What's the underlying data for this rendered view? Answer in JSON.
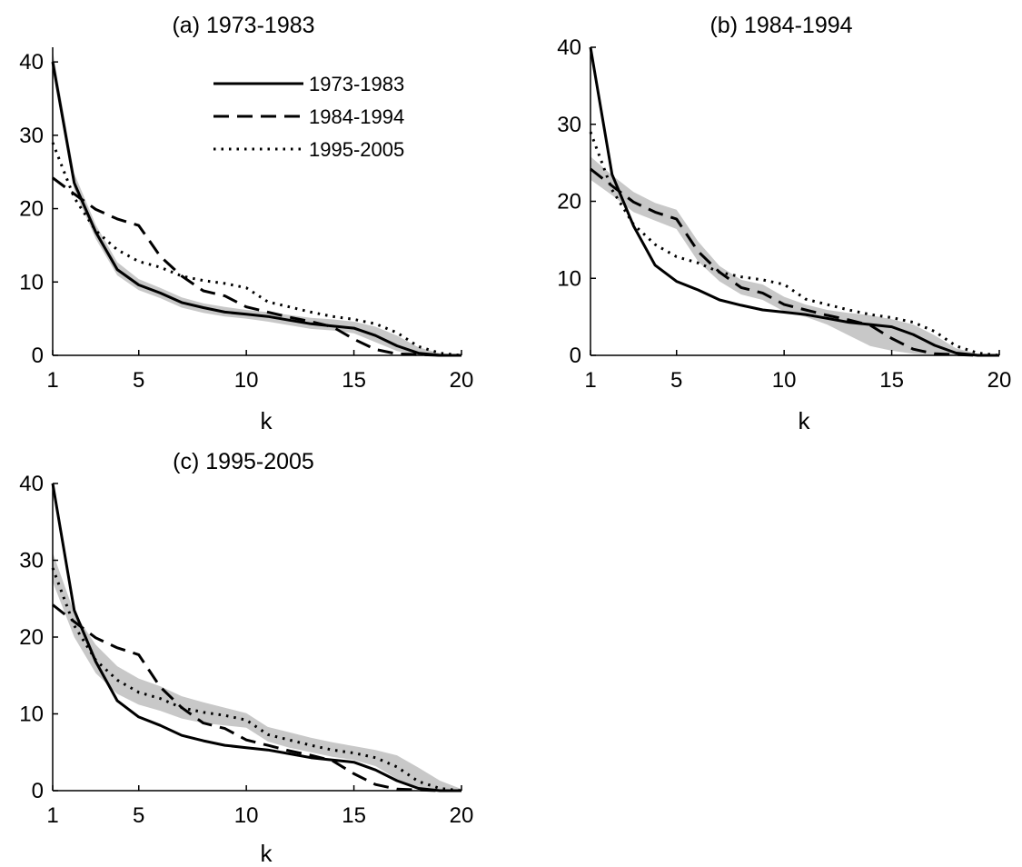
{
  "colors": {
    "line": "#000000",
    "band": "#c8c8c8",
    "background": "#ffffff"
  },
  "chart_data": [
    {
      "type": "line",
      "title": "(a) 1973-1983",
      "xlabel": "k",
      "ylabel": "",
      "xlim": [
        1,
        20
      ],
      "ylim": [
        0,
        42
      ],
      "xticks": [
        1,
        5,
        10,
        15,
        20
      ],
      "yticks": [
        0,
        10,
        20,
        30,
        40
      ],
      "grid": false,
      "legend": "top-right",
      "x": [
        1,
        2,
        3,
        4,
        5,
        6,
        7,
        8,
        9,
        10,
        11,
        12,
        13,
        14,
        15,
        16,
        17,
        18,
        19,
        20
      ],
      "band": {
        "upper": [
          41.5,
          24.8,
          17.8,
          12.7,
          10.4,
          9.2,
          7.9,
          7.1,
          6.6,
          6.2,
          5.9,
          5.5,
          5.1,
          4.9,
          4.6,
          3.9,
          2.7,
          1.1,
          0.3,
          0.0
        ],
        "lower": [
          38.8,
          22.6,
          15.9,
          10.9,
          8.9,
          7.8,
          6.5,
          5.8,
          5.3,
          5.0,
          4.6,
          4.1,
          3.6,
          3.4,
          3.0,
          1.8,
          0.6,
          0.1,
          0.0,
          0.0
        ]
      },
      "series": [
        {
          "name": "1973-1983",
          "style": "solid",
          "values": [
            40.0,
            23.5,
            16.8,
            11.7,
            9.6,
            8.5,
            7.2,
            6.5,
            5.9,
            5.6,
            5.3,
            4.8,
            4.3,
            4.0,
            3.7,
            2.7,
            1.3,
            0.3,
            0.0,
            0.0
          ]
        },
        {
          "name": "1984-1994",
          "style": "dashed",
          "values": [
            24.2,
            22.0,
            19.9,
            18.6,
            17.7,
            13.5,
            10.8,
            8.8,
            8.1,
            6.6,
            5.9,
            5.2,
            4.6,
            3.9,
            2.2,
            0.8,
            0.2,
            0.1,
            0.0,
            0.0
          ]
        },
        {
          "name": "1995-2005",
          "style": "dotted",
          "values": [
            29.0,
            21.5,
            17.0,
            14.4,
            12.8,
            12.0,
            10.8,
            10.2,
            9.8,
            9.2,
            7.3,
            6.6,
            5.9,
            5.3,
            4.9,
            4.3,
            3.1,
            1.2,
            0.3,
            0.0
          ]
        }
      ]
    },
    {
      "type": "line",
      "title": "(b) 1984-1994",
      "xlabel": "k",
      "ylabel": "",
      "xlim": [
        1,
        20
      ],
      "ylim": [
        0,
        40
      ],
      "xticks": [
        1,
        5,
        10,
        15,
        20
      ],
      "yticks": [
        0,
        10,
        20,
        30,
        40
      ],
      "grid": false,
      "x": [
        1,
        2,
        3,
        4,
        5,
        6,
        7,
        8,
        9,
        10,
        11,
        12,
        13,
        14,
        15,
        16,
        17,
        18,
        19,
        20
      ],
      "band": {
        "upper": [
          25.8,
          23.4,
          21.2,
          19.8,
          18.9,
          14.8,
          11.6,
          9.8,
          9.2,
          7.6,
          6.6,
          5.9,
          5.5,
          5.2,
          4.7,
          4.0,
          2.6,
          0.9,
          0.2,
          0.0
        ],
        "lower": [
          22.8,
          20.8,
          18.6,
          17.5,
          16.4,
          12.2,
          9.6,
          7.9,
          7.2,
          5.7,
          5.0,
          4.0,
          2.6,
          1.2,
          0.6,
          0.2,
          0.1,
          0.0,
          0.0,
          0.0
        ]
      },
      "series": [
        {
          "name": "1973-1983",
          "style": "solid",
          "values": [
            40.0,
            23.5,
            16.8,
            11.7,
            9.6,
            8.5,
            7.2,
            6.5,
            5.9,
            5.6,
            5.3,
            4.8,
            4.3,
            4.0,
            3.7,
            2.7,
            1.3,
            0.3,
            0.0,
            0.0
          ]
        },
        {
          "name": "1984-1994",
          "style": "dashed",
          "values": [
            24.2,
            22.0,
            19.9,
            18.6,
            17.7,
            13.5,
            10.8,
            8.8,
            8.1,
            6.6,
            5.9,
            5.2,
            4.6,
            3.9,
            2.2,
            0.8,
            0.2,
            0.1,
            0.0,
            0.0
          ]
        },
        {
          "name": "1995-2005",
          "style": "dotted",
          "values": [
            29.0,
            21.5,
            17.0,
            14.4,
            12.8,
            12.0,
            10.8,
            10.2,
            9.8,
            9.2,
            7.3,
            6.6,
            5.9,
            5.3,
            4.9,
            4.3,
            3.1,
            1.2,
            0.3,
            0.0
          ]
        }
      ]
    },
    {
      "type": "line",
      "title": "(c) 1995-2005",
      "xlabel": "k",
      "ylabel": "",
      "xlim": [
        1,
        20
      ],
      "ylim": [
        0,
        40
      ],
      "xticks": [
        1,
        5,
        10,
        15,
        20
      ],
      "yticks": [
        0,
        10,
        20,
        30,
        40
      ],
      "grid": false,
      "x": [
        1,
        2,
        3,
        4,
        5,
        6,
        7,
        8,
        9,
        10,
        11,
        12,
        13,
        14,
        15,
        16,
        17,
        18,
        19,
        20
      ],
      "band": {
        "upper": [
          31.0,
          23.2,
          19.0,
          16.2,
          14.6,
          13.6,
          12.3,
          11.5,
          10.8,
          10.1,
          8.3,
          7.6,
          6.9,
          6.3,
          5.8,
          5.3,
          4.6,
          3.0,
          1.3,
          0.2
        ],
        "lower": [
          27.2,
          20.0,
          15.3,
          12.6,
          11.2,
          10.4,
          9.4,
          8.8,
          8.5,
          8.2,
          6.4,
          5.6,
          5.0,
          4.4,
          4.0,
          3.2,
          1.5,
          0.4,
          0.1,
          0.0
        ]
      },
      "series": [
        {
          "name": "1973-1983",
          "style": "solid",
          "values": [
            40.0,
            23.5,
            16.8,
            11.7,
            9.6,
            8.5,
            7.2,
            6.5,
            5.9,
            5.6,
            5.3,
            4.8,
            4.3,
            4.0,
            3.7,
            2.7,
            1.3,
            0.3,
            0.0,
            0.0
          ]
        },
        {
          "name": "1984-1994",
          "style": "dashed",
          "values": [
            24.2,
            22.0,
            19.9,
            18.6,
            17.7,
            13.5,
            10.8,
            8.8,
            8.1,
            6.6,
            5.9,
            5.2,
            4.6,
            3.9,
            2.2,
            0.8,
            0.2,
            0.1,
            0.0,
            0.0
          ]
        },
        {
          "name": "1995-2005",
          "style": "dotted",
          "values": [
            29.0,
            21.5,
            17.0,
            14.4,
            12.8,
            12.0,
            10.8,
            10.2,
            9.8,
            9.2,
            7.3,
            6.6,
            5.9,
            5.3,
            4.9,
            4.3,
            3.1,
            1.2,
            0.3,
            0.0
          ]
        }
      ]
    }
  ]
}
